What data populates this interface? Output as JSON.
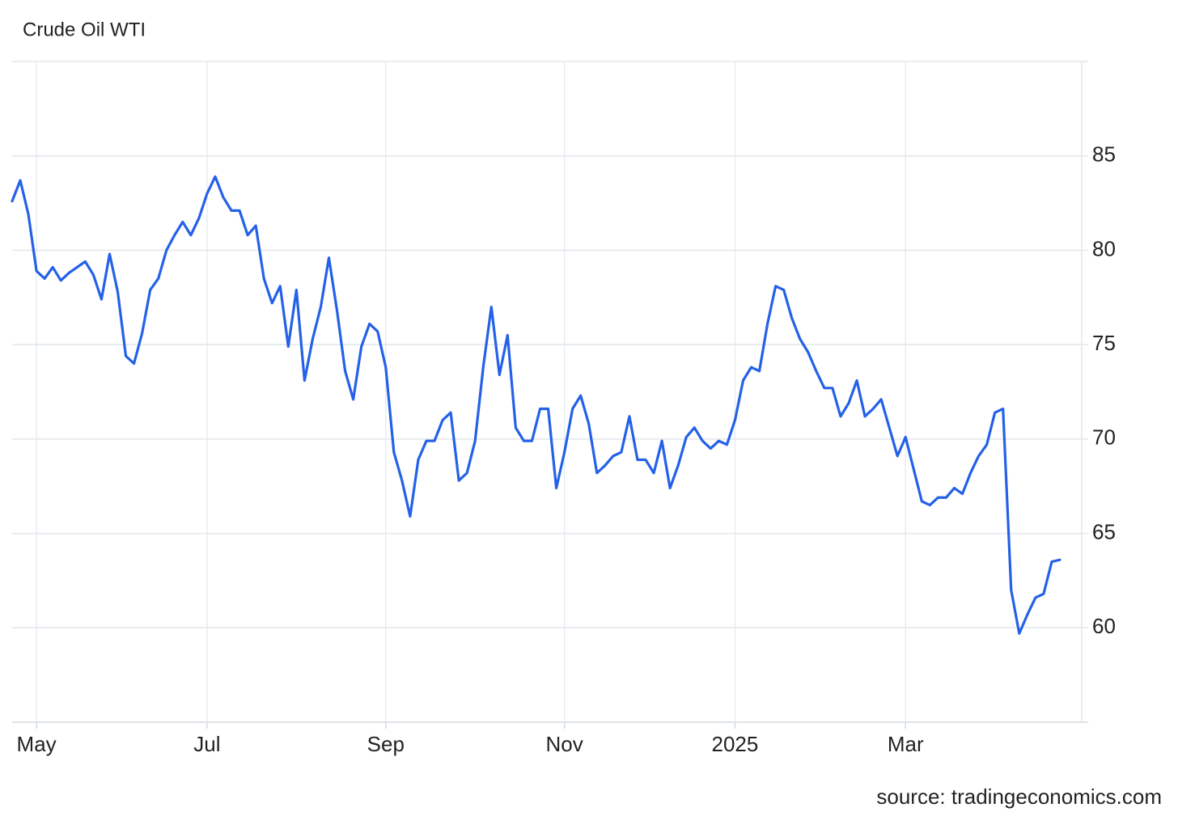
{
  "chart_data": {
    "type": "line",
    "title": "Crude Oil WTI",
    "source": "source: tradingeconomics.com",
    "categories": [
      null,
      null,
      null,
      "May",
      null,
      null,
      null,
      null,
      null,
      null,
      null,
      null,
      null,
      null,
      null,
      null,
      null,
      null,
      null,
      null,
      null,
      null,
      null,
      null,
      "Jul",
      null,
      null,
      null,
      null,
      null,
      null,
      null,
      null,
      null,
      null,
      null,
      null,
      null,
      null,
      null,
      null,
      null,
      null,
      null,
      null,
      null,
      "Sep",
      null,
      null,
      null,
      null,
      null,
      null,
      null,
      null,
      null,
      null,
      null,
      null,
      null,
      null,
      null,
      null,
      null,
      null,
      null,
      null,
      null,
      "Nov",
      null,
      null,
      null,
      null,
      null,
      null,
      null,
      null,
      null,
      null,
      null,
      null,
      null,
      null,
      null,
      null,
      null,
      null,
      null,
      null,
      "2025",
      null,
      null,
      null,
      null,
      null,
      null,
      null,
      null,
      null,
      null,
      null,
      null,
      null,
      null,
      null,
      null,
      null,
      null,
      null,
      null,
      "Mar",
      null,
      null,
      null,
      null,
      null,
      null,
      null,
      null,
      null,
      null,
      null,
      null,
      null,
      null,
      null,
      null,
      null,
      null,
      null
    ],
    "values": [
      82.6,
      83.7,
      81.9,
      78.9,
      78.5,
      79.1,
      78.4,
      78.8,
      79.1,
      79.4,
      78.7,
      77.4,
      79.8,
      77.8,
      74.4,
      74.0,
      75.6,
      77.9,
      78.5,
      80.0,
      80.8,
      81.5,
      80.8,
      81.7,
      83.0,
      83.9,
      82.8,
      82.1,
      82.1,
      80.8,
      81.3,
      78.5,
      77.2,
      78.1,
      74.9,
      77.9,
      73.1,
      75.3,
      77.0,
      79.6,
      76.8,
      73.6,
      72.1,
      74.9,
      76.1,
      75.7,
      73.8,
      69.3,
      67.8,
      65.9,
      68.9,
      69.9,
      69.9,
      71.0,
      71.4,
      67.8,
      68.2,
      69.9,
      73.8,
      77.0,
      73.4,
      75.5,
      70.6,
      69.9,
      69.9,
      71.6,
      71.6,
      67.4,
      69.3,
      71.6,
      72.3,
      70.8,
      68.2,
      68.6,
      69.1,
      69.3,
      71.2,
      68.9,
      68.9,
      68.2,
      69.9,
      67.4,
      68.6,
      70.1,
      70.6,
      69.9,
      69.5,
      69.9,
      69.7,
      71.0,
      73.1,
      73.8,
      73.6,
      76.1,
      78.1,
      77.9,
      76.4,
      75.3,
      74.6,
      73.6,
      72.7,
      72.7,
      71.2,
      71.9,
      73.1,
      71.2,
      71.6,
      72.1,
      70.6,
      69.1,
      70.1,
      68.4,
      66.7,
      66.5,
      66.9,
      66.9,
      67.4,
      67.1,
      68.2,
      69.1,
      69.7,
      71.4,
      71.6,
      62.0,
      59.7,
      60.7,
      61.6,
      61.8,
      63.5,
      63.6
    ],
    "color": "#2461e8",
    "ylim": [
      55,
      90
    ],
    "yticks": [
      60,
      65,
      70,
      75,
      80,
      85
    ],
    "grid": true
  }
}
